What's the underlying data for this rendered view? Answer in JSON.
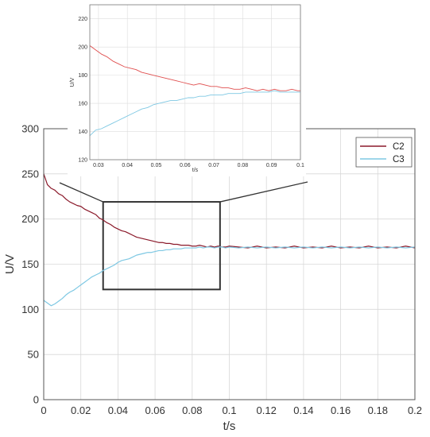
{
  "chart_data": [
    {
      "type": "line",
      "title": "",
      "xlabel": "t/s",
      "ylabel": "U/V",
      "xlim": [
        0,
        0.2
      ],
      "ylim": [
        0,
        300
      ],
      "xticks": [
        0,
        0.02,
        0.04,
        0.06,
        0.08,
        0.1,
        0.12,
        0.14,
        0.16,
        0.18,
        0.2
      ],
      "xtick_labels": [
        "0",
        "0.02",
        "0.04",
        "0.06",
        "0.08",
        "0.1",
        "0.12",
        "0.14",
        "0.16",
        "0.18",
        "0.2"
      ],
      "yticks": [
        0,
        50,
        100,
        150,
        200,
        250,
        300
      ],
      "ytick_labels": [
        "0",
        "50",
        "100",
        "150",
        "200",
        "250",
        "300"
      ],
      "grid": true,
      "legend_position": "top-right",
      "zoom_box": {
        "x": [
          0.032,
          0.095
        ],
        "y": [
          122,
          219
        ]
      },
      "series": [
        {
          "name": "C2",
          "color": "#8b1a2b",
          "x": [
            0,
            0.002,
            0.004,
            0.006,
            0.008,
            0.01,
            0.012,
            0.014,
            0.016,
            0.018,
            0.02,
            0.022,
            0.024,
            0.026,
            0.028,
            0.03,
            0.032,
            0.034,
            0.036,
            0.038,
            0.04,
            0.042,
            0.044,
            0.046,
            0.048,
            0.05,
            0.052,
            0.054,
            0.056,
            0.058,
            0.06,
            0.062,
            0.064,
            0.066,
            0.068,
            0.07,
            0.072,
            0.074,
            0.076,
            0.078,
            0.08,
            0.082,
            0.084,
            0.086,
            0.088,
            0.09,
            0.092,
            0.094,
            0.096,
            0.098,
            0.1,
            0.105,
            0.11,
            0.115,
            0.12,
            0.125,
            0.13,
            0.135,
            0.14,
            0.145,
            0.15,
            0.155,
            0.16,
            0.165,
            0.17,
            0.175,
            0.18,
            0.185,
            0.19,
            0.195,
            0.2
          ],
          "y": [
            250,
            238,
            234,
            232,
            228,
            226,
            222,
            219,
            217,
            215,
            214,
            211,
            209,
            207,
            205,
            201,
            199,
            196,
            194,
            191,
            189,
            187,
            186,
            184,
            182,
            180,
            179,
            178,
            177,
            176,
            175,
            174,
            174,
            173,
            173,
            172,
            172,
            171,
            171,
            171,
            170,
            170,
            171,
            170,
            169,
            170,
            169,
            170,
            169,
            169,
            170,
            169,
            168,
            170,
            168,
            169,
            168,
            170,
            168,
            169,
            168,
            170,
            168,
            169,
            168,
            170,
            168,
            169,
            168,
            170,
            168
          ]
        },
        {
          "name": "C3",
          "color": "#7ec8e3",
          "x": [
            0,
            0.002,
            0.004,
            0.006,
            0.008,
            0.01,
            0.012,
            0.014,
            0.016,
            0.018,
            0.02,
            0.022,
            0.024,
            0.026,
            0.028,
            0.03,
            0.032,
            0.034,
            0.036,
            0.038,
            0.04,
            0.042,
            0.044,
            0.046,
            0.048,
            0.05,
            0.052,
            0.054,
            0.056,
            0.058,
            0.06,
            0.062,
            0.064,
            0.066,
            0.068,
            0.07,
            0.072,
            0.074,
            0.076,
            0.078,
            0.08,
            0.082,
            0.084,
            0.086,
            0.088,
            0.09,
            0.092,
            0.094,
            0.096,
            0.098,
            0.1,
            0.105,
            0.11,
            0.115,
            0.12,
            0.125,
            0.13,
            0.135,
            0.14,
            0.145,
            0.15,
            0.155,
            0.16,
            0.165,
            0.17,
            0.175,
            0.18,
            0.185,
            0.19,
            0.195,
            0.2
          ],
          "y": [
            110,
            107,
            104,
            106,
            109,
            112,
            116,
            119,
            121,
            124,
            127,
            130,
            133,
            136,
            138,
            140,
            143,
            145,
            147,
            149,
            152,
            154,
            155,
            156,
            158,
            160,
            161,
            162,
            163,
            163,
            164,
            165,
            165,
            166,
            166,
            167,
            167,
            167,
            168,
            168,
            168,
            168,
            169,
            168,
            169,
            169,
            168,
            169,
            169,
            168,
            169,
            168,
            169,
            168,
            169,
            168,
            169,
            168,
            169,
            168,
            169,
            168,
            169,
            168,
            169,
            168,
            169,
            168,
            169,
            168,
            169
          ]
        }
      ]
    },
    {
      "type": "line",
      "title": "",
      "xlabel": "t/s",
      "ylabel": "U/V",
      "xlim": [
        0.027,
        0.1
      ],
      "ylim": [
        120,
        230
      ],
      "xticks": [
        0.03,
        0.04,
        0.05,
        0.06,
        0.07,
        0.08,
        0.09,
        0.1
      ],
      "xtick_labels": [
        "0.03",
        "0.04",
        "0.05",
        "0.06",
        "0.07",
        "0.08",
        "0.09",
        "0.1"
      ],
      "yticks": [
        120,
        140,
        160,
        180,
        200,
        220
      ],
      "ytick_labels": [
        "120",
        "140",
        "160",
        "180",
        "200",
        "220"
      ],
      "grid": true,
      "series": [
        {
          "name": "C2",
          "color": "#e05050",
          "x": [
            0.027,
            0.029,
            0.031,
            0.033,
            0.035,
            0.037,
            0.039,
            0.041,
            0.043,
            0.045,
            0.047,
            0.049,
            0.051,
            0.053,
            0.055,
            0.057,
            0.059,
            0.061,
            0.063,
            0.065,
            0.067,
            0.069,
            0.071,
            0.073,
            0.075,
            0.077,
            0.079,
            0.081,
            0.083,
            0.085,
            0.087,
            0.089,
            0.091,
            0.093,
            0.095,
            0.097,
            0.099,
            0.1
          ],
          "y": [
            201,
            198,
            195,
            193,
            190,
            188,
            186,
            185,
            184,
            182,
            181,
            180,
            179,
            178,
            177,
            176,
            175,
            174,
            173,
            174,
            173,
            172,
            172,
            171,
            171,
            170,
            170,
            171,
            170,
            169,
            170,
            169,
            170,
            169,
            169,
            170,
            169,
            169
          ]
        },
        {
          "name": "C3",
          "color": "#7ec8e3",
          "x": [
            0.027,
            0.029,
            0.031,
            0.033,
            0.035,
            0.037,
            0.039,
            0.041,
            0.043,
            0.045,
            0.047,
            0.049,
            0.051,
            0.053,
            0.055,
            0.057,
            0.059,
            0.061,
            0.063,
            0.065,
            0.067,
            0.069,
            0.071,
            0.073,
            0.075,
            0.077,
            0.079,
            0.081,
            0.083,
            0.085,
            0.087,
            0.089,
            0.091,
            0.093,
            0.095,
            0.097,
            0.099,
            0.1
          ],
          "y": [
            137,
            141,
            142,
            144,
            146,
            148,
            150,
            152,
            154,
            156,
            157,
            159,
            160,
            161,
            162,
            162,
            163,
            164,
            164,
            165,
            165,
            166,
            166,
            166,
            167,
            167,
            167,
            168,
            168,
            168,
            168,
            168,
            169,
            168,
            168,
            168,
            168,
            168
          ]
        }
      ]
    }
  ]
}
